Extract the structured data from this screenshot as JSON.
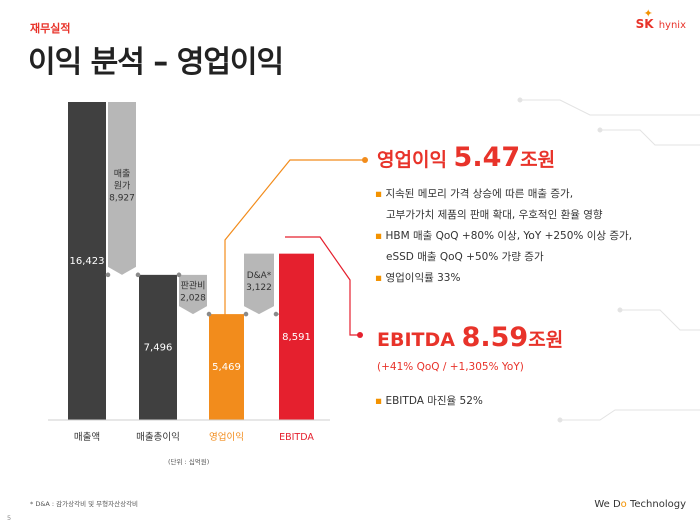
{
  "header": {
    "section_label": "재무실적",
    "title": "이익 분석 – 영업이익"
  },
  "logo": {
    "sk": "SK",
    "hynix": "hynix"
  },
  "chart_data": {
    "type": "bar",
    "unit_note": "(단위 : 십억원)",
    "categories": [
      "매출액",
      "매출총이익",
      "영업이익",
      "EBITDA"
    ],
    "bars": [
      {
        "label": "매출액",
        "value": 16423,
        "value_text": "16,423",
        "base": 0,
        "color": "#404040"
      },
      {
        "label": "매출원가",
        "value": 8927,
        "value_text": "매출\n원가\n8,927",
        "base": 7496,
        "color": "#b7b7b7",
        "kind": "delta"
      },
      {
        "label": "매출총이익",
        "value": 7496,
        "value_text": "7,496",
        "base": 0,
        "color": "#404040"
      },
      {
        "label": "판관비",
        "value": 2028,
        "value_text": "판관비\n2,028",
        "base": 5469,
        "color": "#b7b7b7",
        "kind": "delta"
      },
      {
        "label": "영업이익",
        "value": 5469,
        "value_text": "5,469",
        "base": 0,
        "color": "#f28c1c"
      },
      {
        "label": "D&A*",
        "value": 3122,
        "value_text": "D&A*\n3,122",
        "base": 5469,
        "color": "#b7b7b7",
        "kind": "delta"
      },
      {
        "label": "EBITDA",
        "value": 8591,
        "value_text": "8,591",
        "base": 0,
        "color": "#e5202e"
      }
    ]
  },
  "callout_op": {
    "title_prefix": "영업이익",
    "value": "5.47",
    "suffix": "조원",
    "bullets": [
      "지속된 메모리 가격 상승에 따른 매출 증가,",
      "고부가가치 제품의 판매 확대, 우호적인 환율 영향",
      "HBM 매출 QoQ +80% 이상, YoY +250% 이상 증가,",
      "eSSD 매출 QoQ +50% 가량 증가",
      "영업이익률 33%"
    ]
  },
  "callout_ebitda": {
    "title_prefix": "EBITDA",
    "value": "8.59",
    "suffix": "조원",
    "sub": "(+41% QoQ / +1,305% YoY)",
    "bullets": [
      "EBITDA 마진율 52%"
    ]
  },
  "footer": {
    "footnote": "* D&A : 감가상각비 및 무형자산상각비",
    "brand_we": "We D",
    "brand_o": "o",
    "brand_rest": " Technology",
    "page_number": "5"
  },
  "colors": {
    "accent": "#e8332a",
    "orange": "#f39200",
    "dark": "#404040",
    "gray": "#b7b7b7"
  }
}
